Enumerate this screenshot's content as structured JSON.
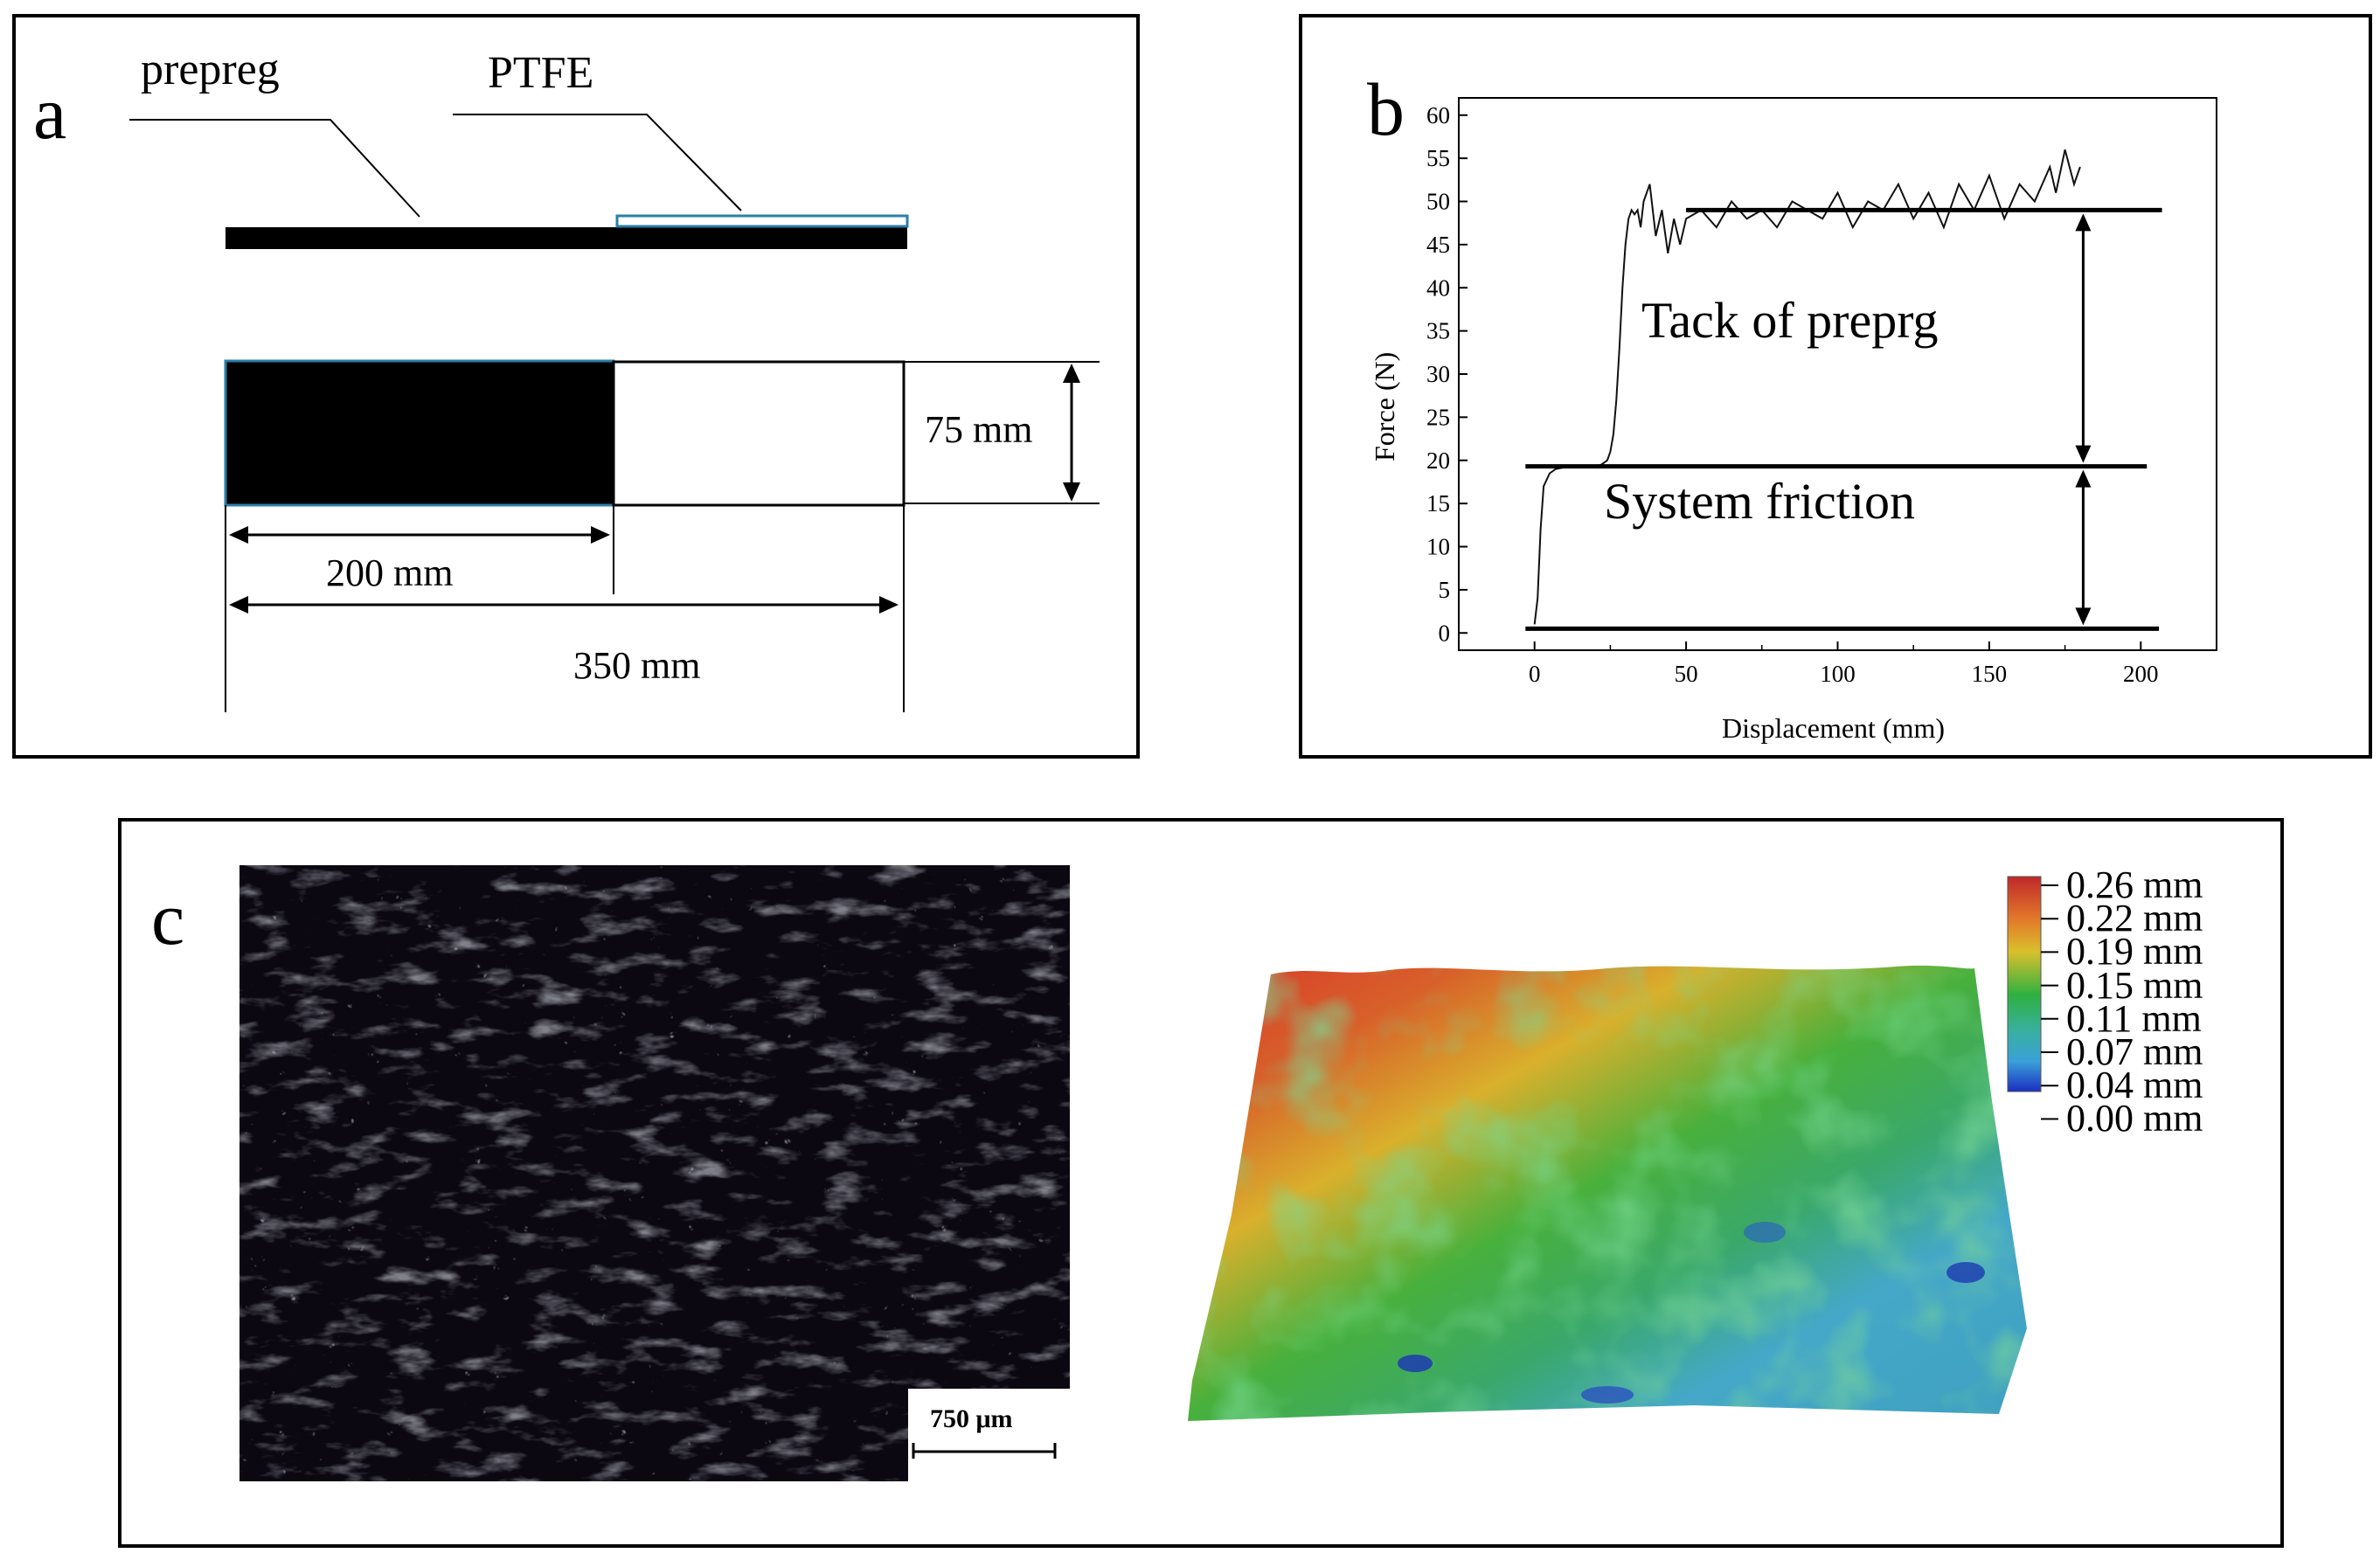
{
  "panel_a": {
    "label": "a",
    "prepreg_label": "prepreg",
    "ptfe_label": "PTFE",
    "dim_75": "75 mm",
    "dim_200": "200 mm",
    "dim_350": "350 mm"
  },
  "panel_b": {
    "label": "b",
    "annotation_tack": "Tack of preprg",
    "annotation_friction": "System friction",
    "chart_data": {
      "type": "line",
      "title": "",
      "xlabel": "Displacement (mm)",
      "ylabel": "Force (N)",
      "xlim": [
        -25,
        225
      ],
      "ylim": [
        -2,
        62
      ],
      "xticks": [
        0,
        50,
        100,
        150,
        200
      ],
      "yticks": [
        0,
        5,
        10,
        15,
        20,
        25,
        30,
        35,
        40,
        45,
        50,
        55,
        60
      ],
      "grid": false,
      "series": [
        {
          "x": [
            0,
            1,
            2,
            3,
            5,
            7,
            10,
            15,
            20,
            22,
            24,
            25,
            26,
            27,
            28,
            29,
            30,
            31,
            32,
            33,
            34,
            35,
            36,
            38,
            40,
            42,
            44,
            46,
            48,
            50,
            55,
            60,
            65,
            70,
            75,
            80,
            85,
            90,
            95,
            100,
            105,
            110,
            115,
            120,
            125,
            130,
            135,
            140,
            145,
            150,
            155,
            160,
            165,
            170,
            172,
            175,
            178,
            180
          ],
          "y": [
            1,
            4,
            12,
            17,
            18.5,
            19,
            19.2,
            19.2,
            19.3,
            19.5,
            20,
            21,
            23,
            27,
            33,
            40,
            45,
            48,
            49,
            48.5,
            49,
            47,
            50,
            52,
            46,
            49,
            44,
            48,
            45,
            48,
            49,
            47,
            50,
            48,
            49,
            47,
            50,
            49,
            48,
            51,
            47,
            50,
            49,
            52,
            48,
            51,
            47,
            52,
            49,
            53,
            48,
            52,
            50,
            54,
            51,
            56,
            52,
            54
          ]
        }
      ],
      "reference_lines": [
        {
          "name": "baseline",
          "y": 0.5
        },
        {
          "name": "system friction level",
          "y": 19.3
        },
        {
          "name": "tack level",
          "y": 49
        }
      ]
    }
  },
  "panel_c": {
    "label": "c",
    "scale_bar": "750 μm",
    "colorbar_labels": [
      "0.26 mm",
      "0.22 mm",
      "0.19 mm",
      "0.15 mm",
      "0.11 mm",
      "0.07 mm",
      "0.04 mm",
      "0.00 mm"
    ],
    "colors": {
      "high": "#d8322a",
      "mid_high": "#e0a028",
      "mid": "#3cae3a",
      "low": "#45a8c8",
      "min": "#1d3bb0"
    }
  }
}
